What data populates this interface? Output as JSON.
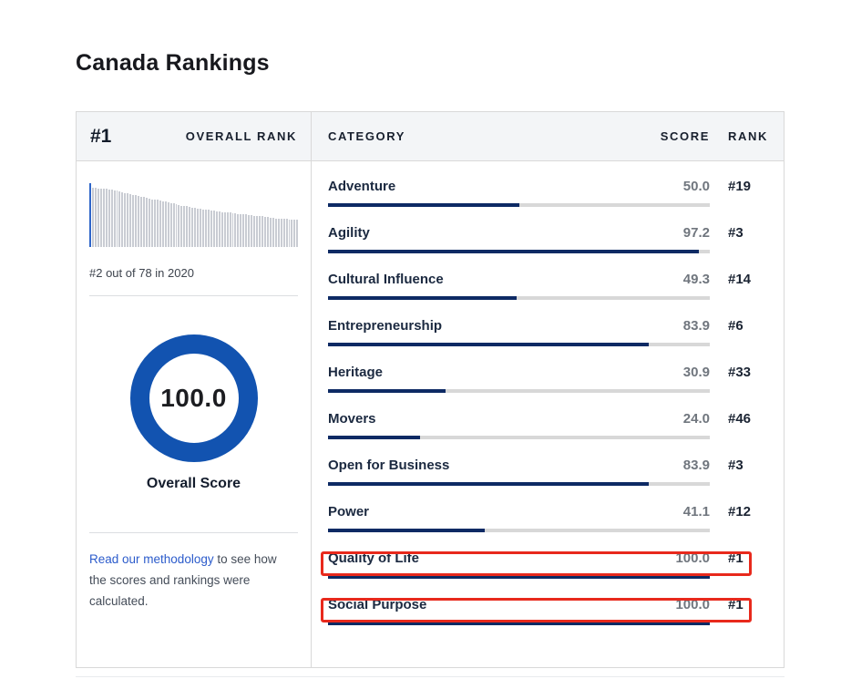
{
  "page": {
    "title": "Canada Rankings"
  },
  "theme": {
    "accent_blue": "#1253b0",
    "bar_navy": "#0d2a64",
    "track_gray": "#d8d8d8",
    "annotation_red": "#e8291c",
    "link_blue": "#2b5bcb",
    "header_bg": "#f3f5f7"
  },
  "overall": {
    "rank_value": "#1",
    "rank_label": "OVERALL RANK",
    "history_caption": "#2 out of 78 in 2020",
    "score": "100.0",
    "score_label": "Overall Score",
    "methodology": {
      "link": "Read our methodology",
      "rest": " to see how the scores and rankings were calculated."
    },
    "sparkline": {
      "highlight_index": 0,
      "heights": [
        100,
        93,
        93,
        92,
        92,
        91,
        91,
        90,
        90,
        89,
        88,
        87,
        86,
        85,
        84,
        83,
        82,
        81,
        80,
        79,
        78,
        77,
        76,
        75,
        75,
        74,
        73,
        72,
        71,
        70,
        69,
        68,
        67,
        66,
        65,
        65,
        64,
        63,
        62,
        61,
        60,
        60,
        59,
        58,
        58,
        57,
        57,
        56,
        56,
        55,
        55,
        54,
        54,
        53,
        53,
        52,
        52,
        51,
        51,
        50,
        50,
        49,
        49,
        48,
        48,
        47,
        47,
        46,
        46,
        45,
        45,
        44,
        44,
        44,
        43,
        43,
        43,
        43
      ]
    }
  },
  "table": {
    "headers": {
      "category": "CATEGORY",
      "score": "SCORE",
      "rank": "RANK"
    },
    "rows": [
      {
        "name": "Adventure",
        "score": "50.0",
        "score_value": 50.0,
        "rank": "#19",
        "highlighted": false
      },
      {
        "name": "Agility",
        "score": "97.2",
        "score_value": 97.2,
        "rank": "#3",
        "highlighted": false
      },
      {
        "name": "Cultural Influence",
        "score": "49.3",
        "score_value": 49.3,
        "rank": "#14",
        "highlighted": false
      },
      {
        "name": "Entrepreneurship",
        "score": "83.9",
        "score_value": 83.9,
        "rank": "#6",
        "highlighted": false
      },
      {
        "name": "Heritage",
        "score": "30.9",
        "score_value": 30.9,
        "rank": "#33",
        "highlighted": false
      },
      {
        "name": "Movers",
        "score": "24.0",
        "score_value": 24.0,
        "rank": "#46",
        "highlighted": false
      },
      {
        "name": "Open for Business",
        "score": "83.9",
        "score_value": 83.9,
        "rank": "#3",
        "highlighted": false
      },
      {
        "name": "Power",
        "score": "41.1",
        "score_value": 41.1,
        "rank": "#12",
        "highlighted": false
      },
      {
        "name": "Quality of Life",
        "score": "100.0",
        "score_value": 100.0,
        "rank": "#1",
        "highlighted": true
      },
      {
        "name": "Social Purpose",
        "score": "100.0",
        "score_value": 100.0,
        "rank": "#1",
        "highlighted": true
      }
    ]
  }
}
